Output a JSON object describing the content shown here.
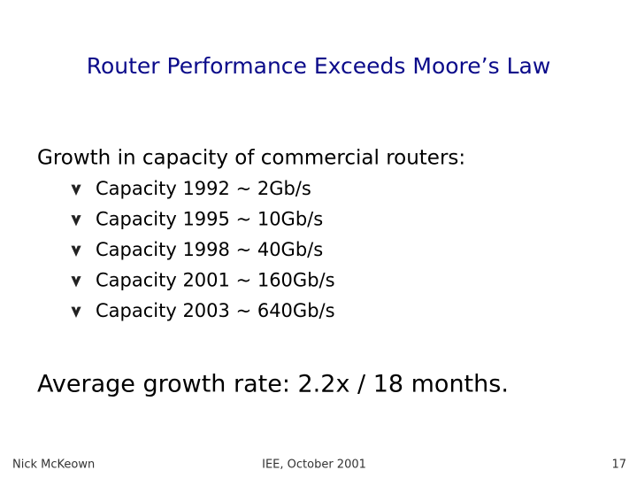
{
  "title": "Router Performance Exceeds Moore’s Law",
  "intro": "Growth in capacity of commercial routers:",
  "bullets": [
    "Capacity 1992 ~ 2Gb/s",
    "Capacity 1995 ~ 10Gb/s",
    "Capacity 1998 ~ 40Gb/s",
    "Capacity 2001 ~ 160Gb/s",
    "Capacity 2003 ~ 640Gb/s"
  ],
  "summary": "Average growth rate: 2.2x / 18 months.",
  "footer": {
    "left": "Nick McKeown",
    "center": "IEE, October 2001",
    "right": "17"
  }
}
